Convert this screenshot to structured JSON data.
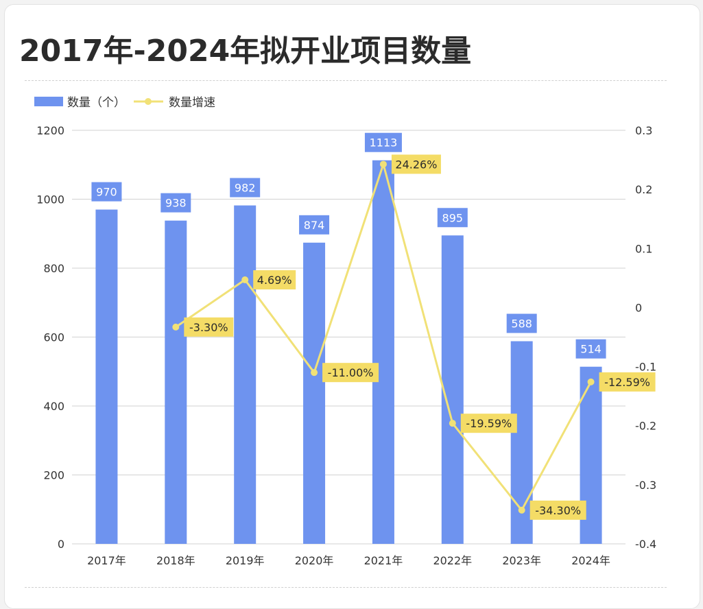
{
  "title": "2017年-2024年拟开业项目数量",
  "colors": {
    "bar": "#6e93ef",
    "line": "#f1e177",
    "rate_label_bg": "#f4dc66",
    "text": "#444444",
    "grid": "#d9d9d9"
  },
  "chart_data": {
    "type": "bar+line",
    "categories": [
      "2017年",
      "2018年",
      "2019年",
      "2020年",
      "2021年",
      "2022年",
      "2023年",
      "2024年"
    ],
    "series": [
      {
        "name": "数量（个）",
        "type": "bar",
        "axis": "left",
        "values": [
          970,
          938,
          982,
          874,
          1113,
          895,
          588,
          514
        ],
        "labels": [
          "970",
          "938",
          "982",
          "874",
          "1113",
          "895",
          "588",
          "514"
        ]
      },
      {
        "name": "数量增速",
        "type": "line",
        "axis": "right",
        "values": [
          null,
          -0.033,
          0.0469,
          -0.11,
          0.2426,
          -0.1959,
          -0.343,
          -0.1259
        ],
        "labels": [
          "",
          "-3.30%",
          "4.69%",
          "-11.00%",
          "24.26%",
          "-19.59%",
          "-34.30%",
          "-12.59%"
        ]
      }
    ],
    "y_left": {
      "min": 0,
      "max": 1200,
      "ticks": [
        "0",
        "200",
        "400",
        "600",
        "800",
        "1000",
        "1200"
      ]
    },
    "y_right": {
      "min": -0.4,
      "max": 0.3,
      "ticks": [
        "-0.4",
        "-0.3",
        "-0.2",
        "-0.1",
        "0",
        "0.1",
        "0.2",
        "0.3"
      ]
    },
    "legend_position": "top-left",
    "grid": true
  }
}
